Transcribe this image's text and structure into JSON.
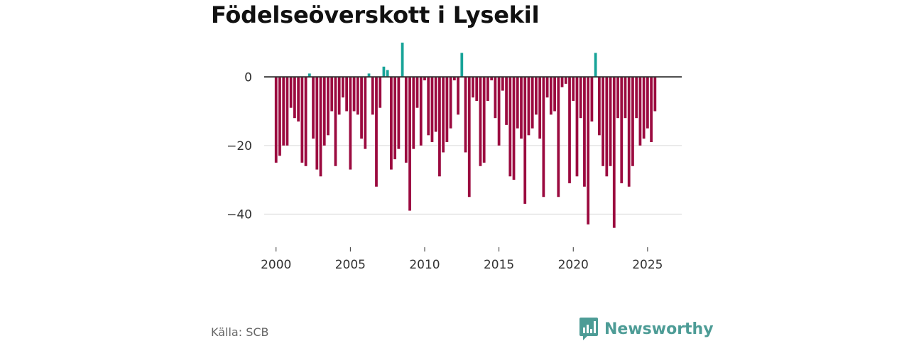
{
  "header": {
    "title": "Födelseöverskott i Lysekil"
  },
  "footer": {
    "source": "Källa: SCB",
    "brand": "Newsworthy"
  },
  "colors": {
    "positive": "#17a398",
    "negative": "#9b0a3f",
    "zero_line": "#333333",
    "grid": "#d9d9d9",
    "brand": "#4d9c96"
  },
  "icons": {
    "brand_logo": "newsworthy-logo-icon"
  },
  "chart_data": {
    "type": "bar",
    "title": "Födelseöverskott i Lysekil",
    "xlabel": "",
    "ylabel": "",
    "grid": "horizontal",
    "legend": "none",
    "x_ticks": [
      "2000",
      "2005",
      "2010",
      "2015",
      "2020",
      "2025"
    ],
    "y_ticks": [
      "0",
      "−20",
      "−40"
    ],
    "ylim": [
      -48,
      10
    ],
    "xlim": [
      1999.2,
      2027.3
    ],
    "quarter_start": 2000.0,
    "values": [
      -25,
      -23,
      -20,
      -20,
      -9,
      -12,
      -13,
      -25,
      -26,
      1,
      -18,
      -27,
      -29,
      -20,
      -17,
      -10,
      -26,
      -11,
      -6,
      -10,
      -27,
      -10,
      -11,
      -18,
      -21,
      1,
      -11,
      -32,
      -9,
      3,
      2,
      -27,
      -24,
      -21,
      10,
      -25,
      -39,
      -21,
      -9,
      -20,
      -1,
      -17,
      -19,
      -16,
      -29,
      -22,
      -19,
      -15,
      -1,
      -11,
      7,
      -22,
      -35,
      -6,
      -7,
      -26,
      -25,
      -7,
      -1,
      -12,
      -20,
      -4,
      -14,
      -29,
      -30,
      -15,
      -18,
      -37,
      -17,
      -15,
      -11,
      -18,
      -35,
      -6,
      -11,
      -10,
      -35,
      -3,
      -2,
      -31,
      -7,
      -29,
      -12,
      -32,
      -43,
      -13,
      7,
      -17,
      -26,
      -29,
      -26,
      -44,
      -12,
      -31,
      -12,
      -32,
      -26,
      -12,
      -20,
      -18,
      -15,
      -19,
      -10
    ]
  }
}
